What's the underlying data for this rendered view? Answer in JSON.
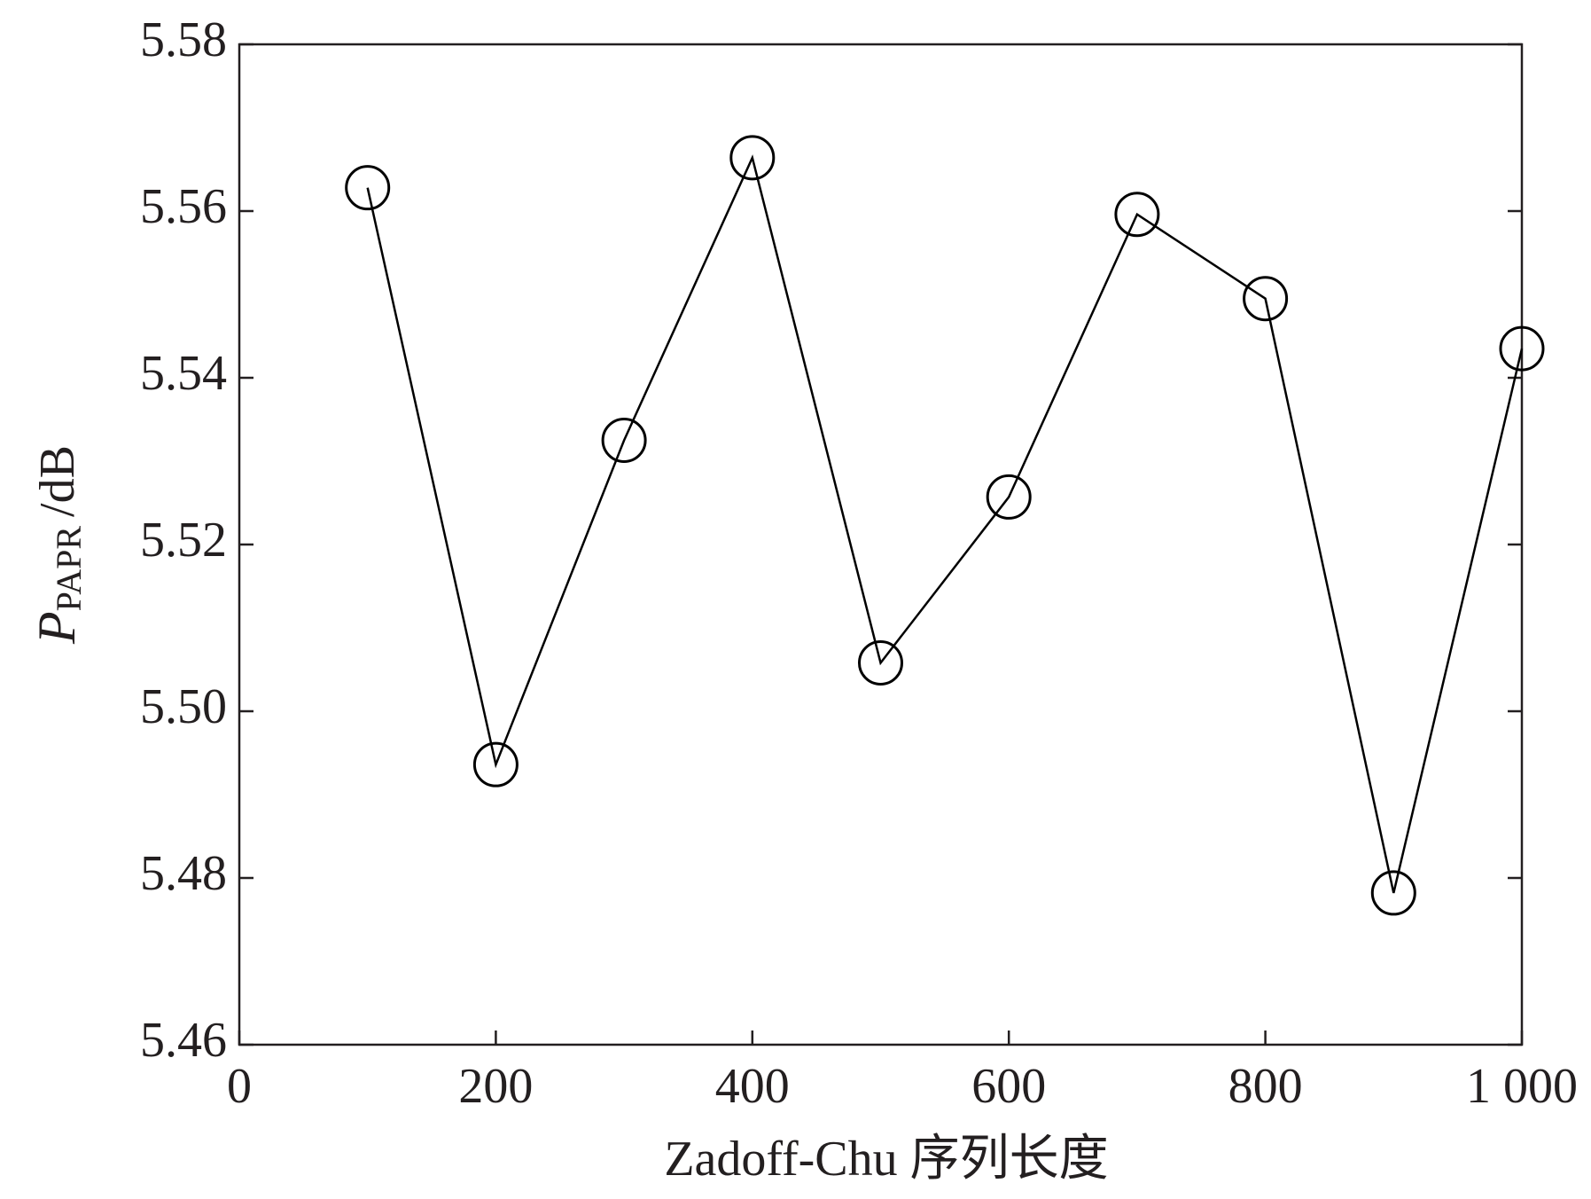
{
  "chart_data": {
    "type": "line",
    "x_label": "Zadoff-Chu 序列长度",
    "y_label": {
      "symbol": "P",
      "subscript": "PAPR",
      "unit": "/dB"
    },
    "x": [
      100,
      200,
      300,
      400,
      500,
      600,
      700,
      800,
      900,
      1000
    ],
    "series": [
      {
        "color": "#000000",
        "marker": "circle",
        "values": [
          5.5628,
          5.4936,
          5.5325,
          5.5664,
          5.5058,
          5.5257,
          5.5596,
          5.5495,
          5.4782,
          5.5435
        ]
      }
    ],
    "xlim": [
      0,
      1000
    ],
    "xticks": [
      0,
      200,
      400,
      600,
      800,
      {
        "value": 1000,
        "label": "1 000"
      }
    ],
    "ylim": [
      5.46,
      5.58
    ],
    "yticks": [
      5.46,
      5.48,
      {
        "value": 5.5,
        "label": "5.50"
      },
      5.52,
      5.54,
      5.56,
      5.58
    ]
  }
}
